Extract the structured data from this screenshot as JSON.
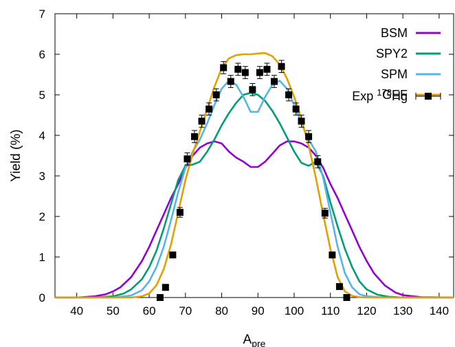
{
  "chart_data": {
    "type": "line",
    "title": "",
    "xlabel": "A",
    "xlabel_sub": "pre",
    "ylabel": "Yield (%)",
    "xlim": [
      34,
      144
    ],
    "ylim": [
      0,
      7
    ],
    "xticks": [
      40,
      50,
      60,
      70,
      80,
      90,
      100,
      110,
      120,
      130,
      140
    ],
    "yticks": [
      0,
      1,
      2,
      3,
      4,
      5,
      6,
      7
    ],
    "grid": false,
    "legend_position": "top-right",
    "series": [
      {
        "name": "BSM",
        "color": "#9400d3",
        "x": [
          34,
          40,
          45,
          48,
          50,
          52,
          55,
          58,
          60,
          62,
          64,
          66,
          68,
          70,
          72,
          74,
          76,
          78,
          80,
          82,
          84,
          86,
          88,
          90,
          92,
          94,
          96,
          98,
          100,
          102,
          104,
          106,
          108,
          110,
          112,
          114,
          116,
          118,
          120,
          122,
          125,
          128,
          130,
          135,
          144
        ],
        "y": [
          0,
          0,
          0.03,
          0.08,
          0.15,
          0.25,
          0.5,
          0.9,
          1.25,
          1.65,
          2.05,
          2.45,
          2.8,
          3.2,
          3.5,
          3.7,
          3.8,
          3.85,
          3.8,
          3.6,
          3.45,
          3.35,
          3.22,
          3.22,
          3.35,
          3.55,
          3.75,
          3.85,
          3.85,
          3.8,
          3.7,
          3.5,
          3.2,
          2.8,
          2.45,
          2.05,
          1.65,
          1.25,
          0.9,
          0.6,
          0.3,
          0.12,
          0.06,
          0.01,
          0
        ]
      },
      {
        "name": "SPY2",
        "color": "#009e73",
        "x": [
          34,
          45,
          50,
          53,
          55,
          58,
          60,
          62,
          64,
          66,
          68,
          70,
          72,
          74,
          76,
          78,
          80,
          82,
          84,
          86,
          88,
          90,
          92,
          94,
          96,
          98,
          100,
          102,
          104,
          106,
          108,
          110,
          112,
          114,
          116,
          118,
          120,
          123,
          126,
          130,
          144
        ],
        "y": [
          0,
          0,
          0.03,
          0.1,
          0.2,
          0.45,
          0.75,
          1.15,
          1.7,
          2.3,
          2.9,
          3.25,
          3.28,
          3.35,
          3.6,
          3.9,
          4.25,
          4.55,
          4.8,
          5.0,
          5.05,
          5.0,
          4.85,
          4.6,
          4.3,
          3.95,
          3.6,
          3.32,
          3.25,
          3.35,
          3.0,
          2.35,
          1.75,
          1.2,
          0.75,
          0.4,
          0.2,
          0.07,
          0.02,
          0,
          0
        ]
      },
      {
        "name": "SPM",
        "color": "#56b4e9",
        "x": [
          34,
          50,
          55,
          58,
          60,
          62,
          64,
          66,
          68,
          70,
          72,
          74,
          76,
          78,
          80,
          82,
          84,
          86,
          88,
          90,
          92,
          94,
          96,
          98,
          100,
          102,
          104,
          106,
          108,
          110,
          112,
          114,
          116,
          118,
          120,
          125,
          144
        ],
        "y": [
          0,
          0,
          0.05,
          0.18,
          0.4,
          0.75,
          1.25,
          1.9,
          2.6,
          3.2,
          3.6,
          3.9,
          4.3,
          4.75,
          5.15,
          5.35,
          5.25,
          4.95,
          4.58,
          4.58,
          4.95,
          5.25,
          5.35,
          5.15,
          4.75,
          4.3,
          3.9,
          3.6,
          2.95,
          2.1,
          1.25,
          0.6,
          0.25,
          0.08,
          0.03,
          0,
          0
        ]
      },
      {
        "name": "GEF",
        "color": "#e69f00",
        "x": [
          34,
          55,
          58,
          60,
          62,
          64,
          66,
          68,
          70,
          72,
          74,
          76,
          78,
          80,
          82,
          84,
          86,
          88,
          90,
          92,
          94,
          96,
          98,
          100,
          102,
          104,
          106,
          108,
          110,
          112,
          114,
          116,
          118,
          120,
          144
        ],
        "y": [
          0,
          0,
          0.03,
          0.1,
          0.3,
          0.7,
          1.3,
          2.1,
          2.9,
          3.55,
          4.1,
          4.65,
          5.2,
          5.65,
          5.9,
          5.98,
          6.0,
          6.0,
          6.02,
          6.03,
          5.95,
          5.75,
          5.4,
          4.95,
          4.4,
          3.75,
          2.95,
          2.05,
          1.2,
          0.5,
          0.15,
          0.04,
          0.01,
          0,
          0
        ]
      }
    ],
    "experimental": {
      "name_prefix": "Exp ",
      "isotope_mass": "178",
      "isotope_symbol": "Hg",
      "color": "#000000",
      "points": [
        {
          "x": 63,
          "y": 0.0,
          "err": 0.02
        },
        {
          "x": 64.5,
          "y": 0.25,
          "err": 0.02
        },
        {
          "x": 66.5,
          "y": 1.05,
          "err": 0.05
        },
        {
          "x": 68.5,
          "y": 2.1,
          "err": 0.12
        },
        {
          "x": 70.5,
          "y": 3.42,
          "err": 0.15
        },
        {
          "x": 72.5,
          "y": 3.97,
          "err": 0.15
        },
        {
          "x": 74.5,
          "y": 4.35,
          "err": 0.15
        },
        {
          "x": 76.5,
          "y": 4.65,
          "err": 0.15
        },
        {
          "x": 78.5,
          "y": 5.0,
          "err": 0.15
        },
        {
          "x": 80.5,
          "y": 5.67,
          "err": 0.15
        },
        {
          "x": 82.5,
          "y": 5.33,
          "err": 0.15
        },
        {
          "x": 84.5,
          "y": 5.63,
          "err": 0.15
        },
        {
          "x": 86.5,
          "y": 5.55,
          "err": 0.15
        },
        {
          "x": 88.5,
          "y": 5.13,
          "err": 0.15
        },
        {
          "x": 90.5,
          "y": 5.55,
          "err": 0.15
        },
        {
          "x": 92.5,
          "y": 5.63,
          "err": 0.15
        },
        {
          "x": 94.5,
          "y": 5.33,
          "err": 0.15
        },
        {
          "x": 96.5,
          "y": 5.7,
          "err": 0.15
        },
        {
          "x": 98.5,
          "y": 5.0,
          "err": 0.15
        },
        {
          "x": 100.5,
          "y": 4.65,
          "err": 0.15
        },
        {
          "x": 102,
          "y": 4.35,
          "err": 0.15
        },
        {
          "x": 104,
          "y": 3.97,
          "err": 0.15
        },
        {
          "x": 106.5,
          "y": 3.35,
          "err": 0.15
        },
        {
          "x": 108.5,
          "y": 2.08,
          "err": 0.12
        },
        {
          "x": 110.5,
          "y": 1.05,
          "err": 0.05
        },
        {
          "x": 112.5,
          "y": 0.27,
          "err": 0.02
        },
        {
          "x": 114.5,
          "y": 0.0,
          "err": 0.02
        }
      ]
    }
  }
}
